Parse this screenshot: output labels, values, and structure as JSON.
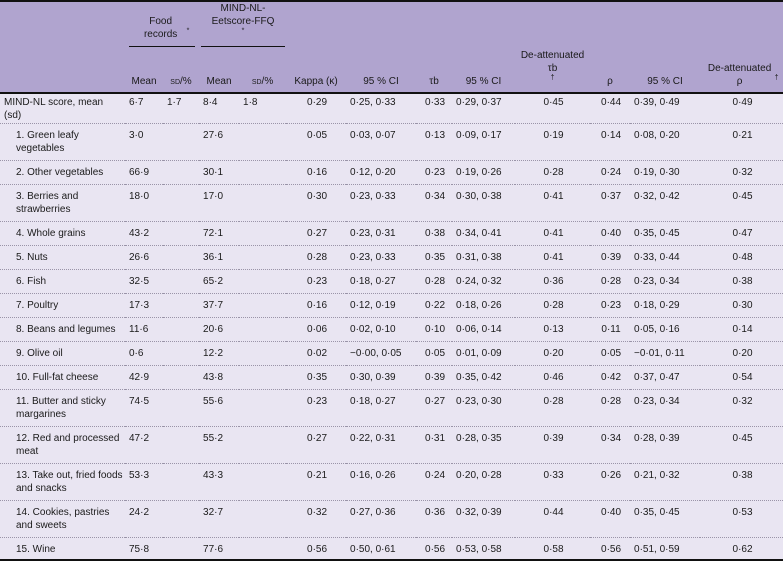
{
  "header": {
    "group_food": "Food records",
    "group_ffq": "MIND-NL-Eetscore-FFQ",
    "group_marker": "*",
    "columns": [
      "Mean",
      "sd/%",
      "Mean",
      "sd/%",
      "Kappa (κ)",
      "95 % CI",
      "τb",
      "95 % CI",
      "De-attenuated τb",
      "ρ",
      "95 % CI",
      "De-attenuated ρ"
    ],
    "dagger": "†"
  },
  "rows": [
    {
      "label": "MIND-NL score, mean (sd)",
      "values": [
        "6·7",
        "1·7",
        "8·4",
        "1·8",
        "0·29",
        "0·25, 0·33",
        "0·33",
        "0·29, 0·37",
        "0·45",
        "0·44",
        "0·39, 0·49",
        "0·49"
      ]
    },
    {
      "label": "1. Green leafy vegetables",
      "values": [
        "3·0",
        "",
        "27·6",
        "",
        "0·05",
        "0·03, 0·07",
        "0·13",
        "0·09, 0·17",
        "0·19",
        "0·14",
        "0·08, 0·20",
        "0·21"
      ]
    },
    {
      "label": "2. Other vegetables",
      "values": [
        "66·9",
        "",
        "30·1",
        "",
        "0·16",
        "0·12, 0·20",
        "0·23",
        "0·19, 0·26",
        "0·28",
        "0·24",
        "0·19, 0·30",
        "0·32"
      ]
    },
    {
      "label": "3. Berries and strawberries",
      "values": [
        "18·0",
        "",
        "17·0",
        "",
        "0·30",
        "0·23, 0·33",
        "0·34",
        "0·30, 0·38",
        "0·41",
        "0·37",
        "0·32, 0·42",
        "0·45"
      ]
    },
    {
      "label": "4. Whole grains",
      "values": [
        "43·2",
        "",
        "72·1",
        "",
        "0·27",
        "0·23, 0·31",
        "0·38",
        "0·34, 0·41",
        "0·41",
        "0·40",
        "0·35, 0·45",
        "0·47"
      ]
    },
    {
      "label": "5. Nuts",
      "values": [
        "26·6",
        "",
        "36·1",
        "",
        "0·28",
        "0·23, 0·33",
        "0·35",
        "0·31, 0·38",
        "0·41",
        "0·39",
        "0·33, 0·44",
        "0·48"
      ]
    },
    {
      "label": "6. Fish",
      "values": [
        "32·5",
        "",
        "65·2",
        "",
        "0·23",
        "0·18, 0·27",
        "0·28",
        "0·24, 0·32",
        "0·36",
        "0·28",
        "0·23, 0·34",
        "0·38"
      ]
    },
    {
      "label": "7. Poultry",
      "values": [
        "17·3",
        "",
        "37·7",
        "",
        "0·16",
        "0·12, 0·19",
        "0·22",
        "0·18, 0·26",
        "0·28",
        "0·23",
        "0·18, 0·29",
        "0·30"
      ]
    },
    {
      "label": "8. Beans and legumes",
      "values": [
        "11·6",
        "",
        "20·6",
        "",
        "0·06",
        "0·02, 0·10",
        "0·10",
        "0·06, 0·14",
        "0·13",
        "0·11",
        "0·05, 0·16",
        "0·14"
      ]
    },
    {
      "label": "9. Olive oil",
      "values": [
        "0·6",
        "",
        "12·2",
        "",
        "0·02",
        "−0·00, 0·05",
        "0·05",
        "0·01, 0·09",
        "0·20",
        "0·05",
        "−0·01, 0·11",
        "0·20"
      ]
    },
    {
      "label": "10. Full-fat cheese",
      "values": [
        "42·9",
        "",
        "43·8",
        "",
        "0·35",
        "0·30, 0·39",
        "0·39",
        "0·35, 0·42",
        "0·46",
        "0·42",
        "0·37, 0·47",
        "0·54"
      ]
    },
    {
      "label": "11. Butter and sticky margarines",
      "values": [
        "74·5",
        "",
        "55·6",
        "",
        "0·23",
        "0·18, 0·27",
        "0·27",
        "0·23, 0·30",
        "0·28",
        "0·28",
        "0·23, 0·34",
        "0·32"
      ]
    },
    {
      "label": "12. Red and processed meat",
      "values": [
        "47·2",
        "",
        "55·2",
        "",
        "0·27",
        "0·22, 0·31",
        "0·31",
        "0·28, 0·35",
        "0·39",
        "0·34",
        "0·28, 0·39",
        "0·45"
      ]
    },
    {
      "label": "13. Take out, fried foods and snacks",
      "values": [
        "53·3",
        "",
        "43·3",
        "",
        "0·21",
        "0·16, 0·26",
        "0·24",
        "0·20, 0·28",
        "0·33",
        "0·26",
        "0·21, 0·32",
        "0·38"
      ]
    },
    {
      "label": "14. Cookies, pastries and sweets",
      "values": [
        "24·2",
        "",
        "32·7",
        "",
        "0·32",
        "0·27, 0·36",
        "0·36",
        "0·32, 0·39",
        "0·44",
        "0·40",
        "0·35, 0·45",
        "0·53"
      ]
    },
    {
      "label": "15. Wine",
      "values": [
        "75·8",
        "",
        "77·6",
        "",
        "0·56",
        "0·50, 0·61",
        "0·56",
        "0·53, 0·58",
        "0·58",
        "0·56",
        "0·51, 0·59",
        "0·62"
      ]
    }
  ],
  "colors": {
    "header_bg": "#b0a4cf",
    "body_bg": "#e9e5f2"
  }
}
